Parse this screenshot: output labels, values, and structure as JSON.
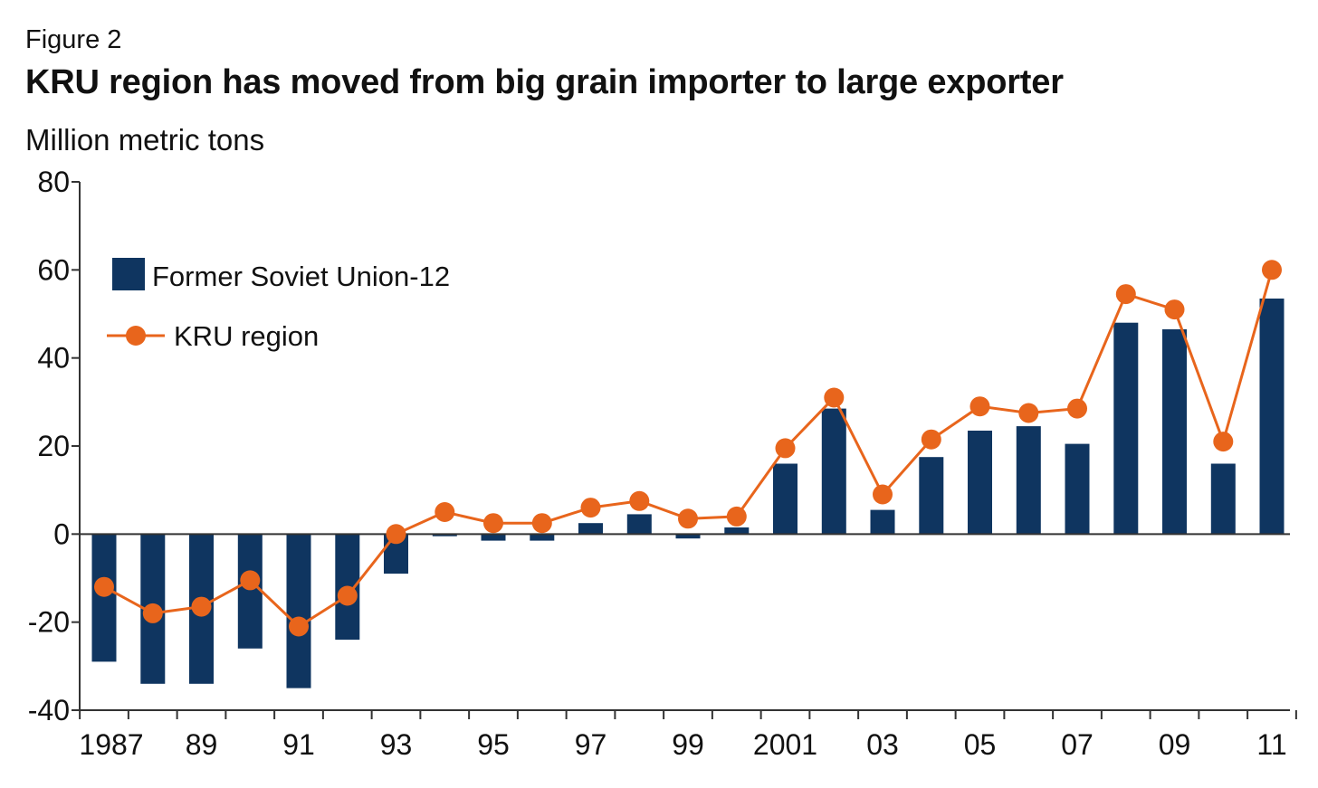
{
  "figure_label": "Figure 2",
  "chart_data": {
    "type": "bar",
    "title": "KRU region has moved from big grain importer to large exporter",
    "ylabel": "Million metric tons",
    "xlabel": "",
    "ylim": [
      -40,
      80
    ],
    "yticks": [
      -40,
      -20,
      0,
      20,
      40,
      60,
      80
    ],
    "years": [
      1987,
      1988,
      1989,
      1990,
      1991,
      1992,
      1993,
      1994,
      1995,
      1996,
      1997,
      1998,
      1999,
      2000,
      2001,
      2002,
      2003,
      2004,
      2005,
      2006,
      2007,
      2008,
      2009,
      2010,
      2011
    ],
    "xtick_labels": [
      "1987",
      "",
      "89",
      "",
      "91",
      "",
      "93",
      "",
      "95",
      "",
      "97",
      "",
      "99",
      "",
      "2001",
      "",
      "03",
      "",
      "05",
      "",
      "07",
      "",
      "09",
      "",
      "11"
    ],
    "series": [
      {
        "name": "Former Soviet Union-12",
        "kind": "bar",
        "color": "#0f3560",
        "values": [
          -29,
          -34,
          -34,
          -26,
          -35,
          -24,
          -9,
          -0.5,
          -1.5,
          -1.5,
          2.5,
          4.5,
          -1,
          1.5,
          16,
          28.5,
          5.5,
          17.5,
          23.5,
          24.5,
          20.5,
          48,
          46.5,
          16,
          53.5
        ]
      },
      {
        "name": "KRU region",
        "kind": "line",
        "color": "#e8651c",
        "values": [
          -12,
          -18,
          -16.5,
          -10.5,
          -21,
          -14,
          0,
          5,
          2.5,
          2.5,
          6,
          7.5,
          3.5,
          4,
          19.5,
          31,
          9,
          21.5,
          29,
          27.5,
          28.5,
          54.5,
          51,
          21,
          60
        ]
      }
    ],
    "legend_position": "top-left"
  }
}
